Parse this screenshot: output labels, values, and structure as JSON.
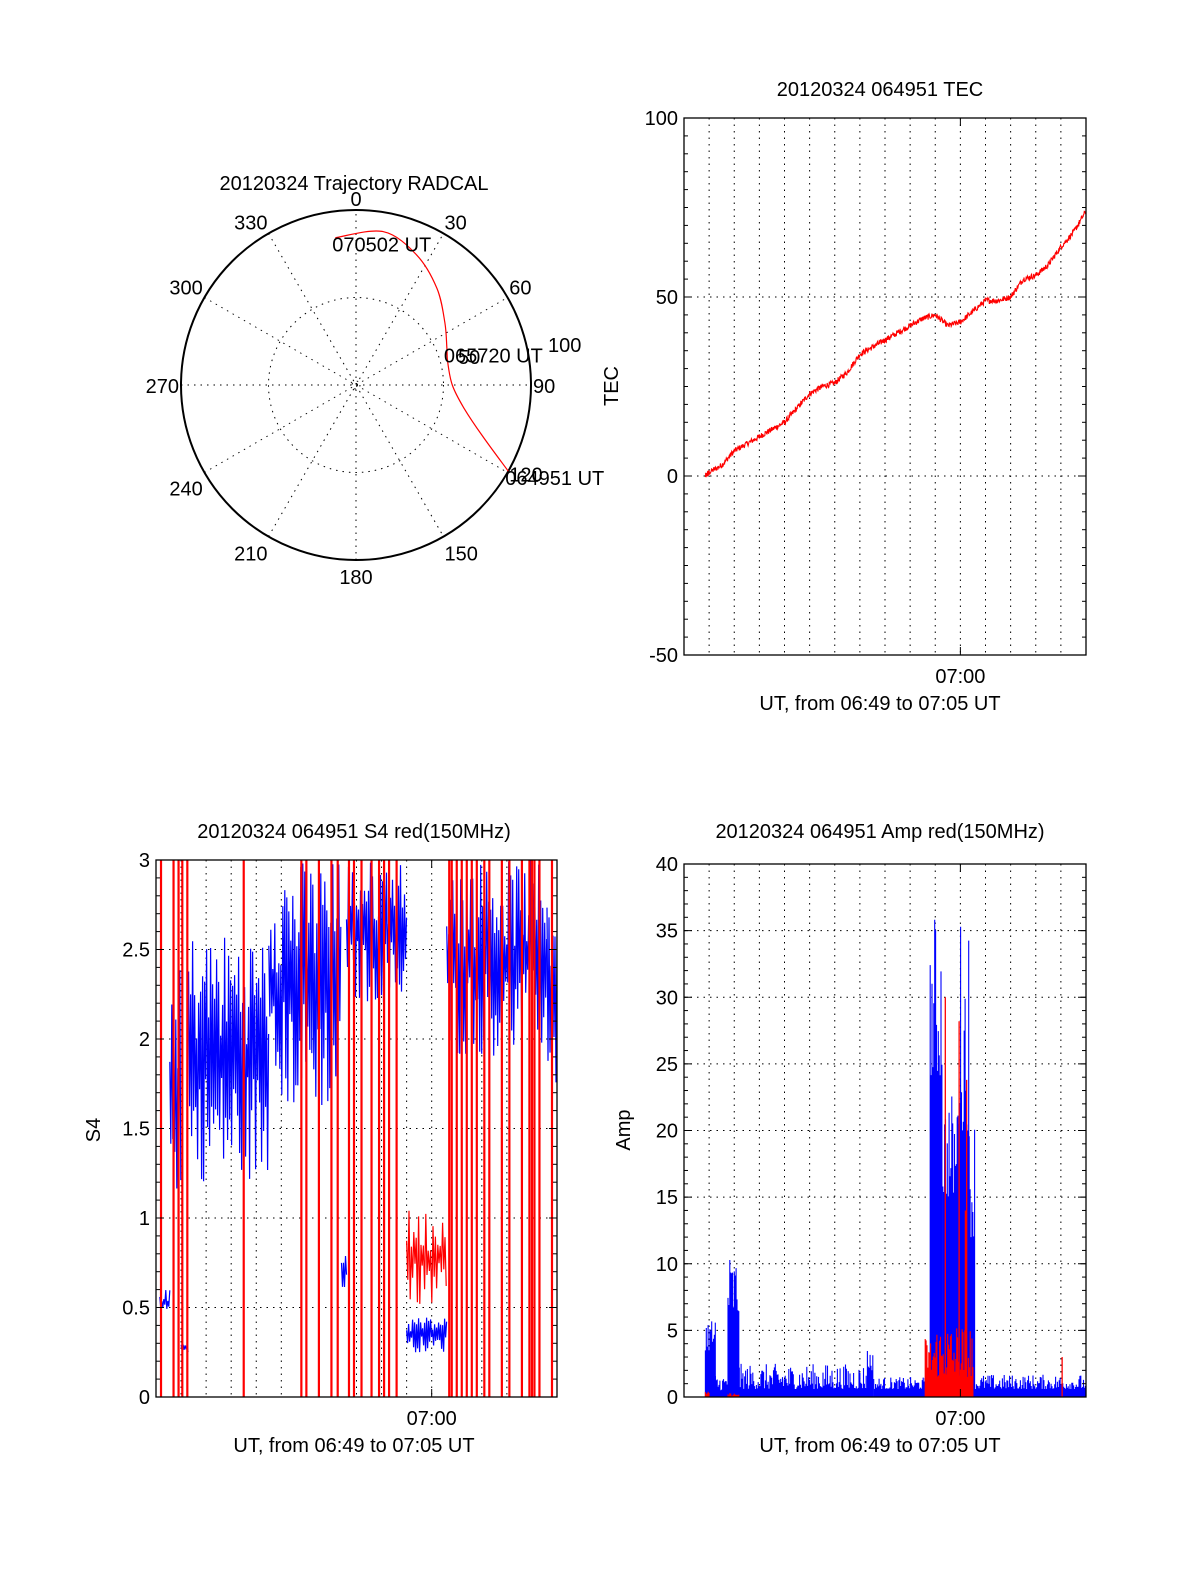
{
  "figure": {
    "background": "#ffffff",
    "colors": {
      "red_channel": "#ff0000",
      "blue_channel": "#0000ff",
      "axes": "#000000"
    }
  },
  "chart_data": [
    {
      "id": "trajectory",
      "type": "polar",
      "title": "20120324 Trajectory RADCAL",
      "angle_ticks": [
        "0",
        "30",
        "60",
        "90",
        "120",
        "150",
        "180",
        "210",
        "240",
        "270",
        "300",
        "330"
      ],
      "radius_ticks": [
        "50",
        "100"
      ],
      "radius_range": [
        0,
        100
      ],
      "grid": true,
      "trajectory": {
        "color": "#ff0000",
        "points": [
          {
            "az": 119.5,
            "r": 100,
            "label": "064951 UT"
          },
          {
            "az": 112,
            "r": 78
          },
          {
            "az": 102,
            "r": 63
          },
          {
            "az": 90,
            "r": 55
          },
          {
            "az": 76,
            "r": 54
          },
          {
            "az": 68,
            "r": 56,
            "label": "065720 UT"
          },
          {
            "az": 55,
            "r": 62
          },
          {
            "az": 40,
            "r": 72
          },
          {
            "az": 25,
            "r": 82
          },
          {
            "az": 10,
            "r": 89
          },
          {
            "az": 352,
            "r": 85,
            "label": "070502 UT"
          }
        ]
      },
      "annotations": [
        "064951 UT",
        "065720 UT",
        "070502 UT"
      ]
    },
    {
      "id": "tec",
      "type": "line",
      "title": "20120324 064951 TEC",
      "xlabel": "UT, from 06:49 to 07:05 UT",
      "ylabel": "TEC",
      "xlim_minutes": [
        0,
        16
      ],
      "x_origin": "06:49",
      "x_tick_labels": [
        {
          "minute": 11,
          "label": "07:00"
        }
      ],
      "ylim": [
        -50,
        100
      ],
      "y_ticks": [
        "-50",
        "0",
        "50",
        "100"
      ],
      "grid": true,
      "series": [
        {
          "name": "TEC",
          "color": "#ff0000",
          "x_minutes": [
            0.85,
            1.0,
            1.5,
            2.0,
            2.5,
            3.0,
            3.5,
            4.0,
            4.5,
            5.0,
            5.5,
            6.0,
            6.5,
            7.0,
            7.5,
            8.0,
            8.5,
            9.0,
            9.5,
            10.0,
            10.5,
            11.0,
            11.5,
            12.0,
            12.5,
            13.0,
            13.5,
            14.0,
            14.5,
            15.0,
            15.5,
            16.0
          ],
          "values": [
            0,
            1,
            3,
            7,
            9,
            11,
            13,
            15,
            19,
            23,
            25,
            26,
            29,
            34,
            36,
            38,
            40,
            42,
            44,
            45,
            42,
            43,
            46,
            49,
            49,
            50,
            55,
            56,
            59,
            64,
            68,
            74
          ]
        }
      ]
    },
    {
      "id": "s4",
      "type": "line",
      "title": "20120324 064951 S4 red(150MHz)",
      "xlabel": "UT, from 06:49 to 07:05 UT",
      "ylabel": "S4",
      "xlim_minutes": [
        0,
        16
      ],
      "x_origin": "06:49",
      "x_tick_labels": [
        {
          "minute": 11,
          "label": "07:00"
        }
      ],
      "ylim": [
        0,
        3
      ],
      "y_ticks": [
        "0",
        "0.5",
        "1",
        "1.5",
        "2",
        "2.5",
        "3"
      ],
      "grid": true,
      "series": [
        {
          "name": "blue",
          "color": "#0000ff",
          "segments": [
            {
              "x": [
                0.15,
                0.55
              ],
              "low": 0.45,
              "high": 0.6
            },
            {
              "x": [
                0.55,
                1.0
              ],
              "low": 1.1,
              "high": 2.4
            },
            {
              "x": [
                1.0,
                1.3
              ],
              "low": 0.25,
              "high": 0.3
            },
            {
              "x": [
                1.3,
                4.5
              ],
              "low": 1.2,
              "high": 2.6
            },
            {
              "x": [
                4.5,
                7.4
              ],
              "low": 1.6,
              "high": 3.0
            },
            {
              "x": [
                7.4,
                7.6
              ],
              "low": 0.6,
              "high": 0.8
            },
            {
              "x": [
                7.6,
                10.0
              ],
              "low": 2.2,
              "high": 3.0
            },
            {
              "x": [
                10.0,
                11.6
              ],
              "low": 0.25,
              "high": 0.45
            },
            {
              "x": [
                11.6,
                15.6
              ],
              "low": 1.9,
              "high": 3.0
            },
            {
              "x": [
                15.6,
                16.0
              ],
              "low": 1.7,
              "high": 2.9
            }
          ]
        },
        {
          "name": "red",
          "color": "#ff0000",
          "segments": [
            {
              "x": [
                10.0,
                11.6
              ],
              "low": 0.5,
              "high": 1.05
            }
          ],
          "full_height_spikes_minutes": [
            0.2,
            0.7,
            0.9,
            1.05,
            1.25,
            3.5,
            5.8,
            6.0,
            6.5,
            7.0,
            7.25,
            7.7,
            7.9,
            8.2,
            8.6,
            8.9,
            9.1,
            9.3,
            9.6,
            11.7,
            11.8,
            12.0,
            12.2,
            12.4,
            12.6,
            12.8,
            13.1,
            13.3,
            13.8,
            14.1,
            14.6,
            14.9,
            15.0,
            15.1,
            15.3,
            15.8
          ]
        }
      ]
    },
    {
      "id": "amp",
      "type": "bar",
      "title": "20120324 064951 Amp red(150MHz)",
      "xlabel": "UT, from 06:49 to 07:05 UT",
      "ylabel": "Amp",
      "xlim_minutes": [
        0,
        16
      ],
      "x_origin": "06:49",
      "x_tick_labels": [
        {
          "minute": 11,
          "label": "07:00"
        }
      ],
      "ylim": [
        0,
        40
      ],
      "y_ticks": [
        "0",
        "5",
        "10",
        "15",
        "20",
        "25",
        "30",
        "35",
        "40"
      ],
      "grid": true,
      "series": [
        {
          "name": "blue",
          "color": "#0000ff",
          "segments": [
            {
              "x": [
                0.85,
                1.25
              ],
              "low": 3.5,
              "high": 6.3
            },
            {
              "x": [
                1.25,
                1.75
              ],
              "low": 0.5,
              "high": 1.8
            },
            {
              "x": [
                1.75,
                2.2
              ],
              "low": 6.0,
              "high": 11.0
            },
            {
              "x": [
                2.2,
                7.3
              ],
              "low": 0.6,
              "high": 2.5
            },
            {
              "x": [
                7.3,
                7.55
              ],
              "low": 2.0,
              "high": 3.8
            },
            {
              "x": [
                7.55,
                9.8
              ],
              "low": 0.6,
              "high": 1.5
            },
            {
              "x": [
                9.8,
                10.3
              ],
              "low": 24.0,
              "high": 36.5
            },
            {
              "x": [
                10.3,
                10.9
              ],
              "low": 15.0,
              "high": 23.0
            },
            {
              "x": [
                10.9,
                11.35
              ],
              "low": 20.0,
              "high": 36.5
            },
            {
              "x": [
                11.35,
                11.6
              ],
              "low": 12.0,
              "high": 22.0
            },
            {
              "x": [
                11.6,
                16.0
              ],
              "low": 0.6,
              "high": 1.7
            }
          ]
        },
        {
          "name": "red",
          "color": "#ff0000",
          "segments": [
            {
              "x": [
                0.85,
                1.0
              ],
              "low": 0.1,
              "high": 0.4
            },
            {
              "x": [
                1.75,
                2.2
              ],
              "low": 0.1,
              "high": 0.3
            },
            {
              "x": [
                9.6,
                9.85
              ],
              "low": 2.0,
              "high": 4.6
            },
            {
              "x": [
                9.85,
                11.5
              ],
              "low": 1.5,
              "high": 5.8
            }
          ],
          "spikes": [
            {
              "x": 10.4,
              "value": 30.0
            },
            {
              "x": 10.95,
              "value": 28.2
            },
            {
              "x": 11.25,
              "value": 23.8
            },
            {
              "x": 11.2,
              "value": 14.0
            },
            {
              "x": 15.05,
              "value": 3.0
            }
          ]
        }
      ]
    }
  ]
}
